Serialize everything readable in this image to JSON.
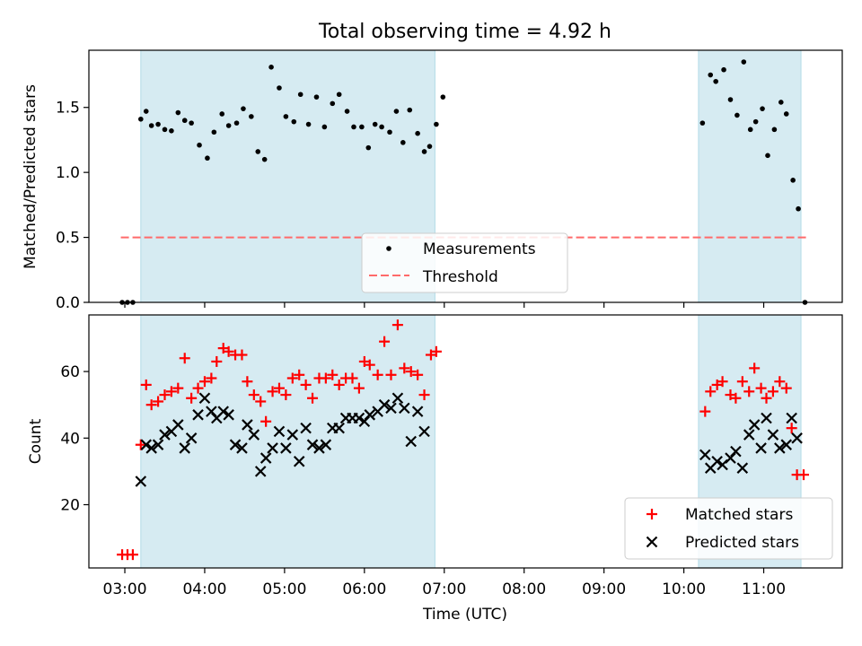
{
  "figure": {
    "title": "Total observing time = 4.92 h"
  },
  "colors": {
    "shade": "#add8e6",
    "threshold": "#ff6a6a",
    "measurements": "#000000",
    "matched": "#ff0000",
    "predicted": "#000000"
  },
  "chart_data": [
    {
      "type": "scatter",
      "title": "Total observing time = 4.92 h",
      "xlabel": "",
      "ylabel": "Matched/Predicted stars",
      "xlim": [
        "02:33",
        "11:59"
      ],
      "ylim": [
        0,
        1.94
      ],
      "x_ticks": [
        "03:00",
        "04:00",
        "05:00",
        "06:00",
        "07:00",
        "08:00",
        "09:00",
        "10:00",
        "11:00"
      ],
      "y_ticks": [
        "0.0",
        "0.5",
        "1.0",
        "1.5"
      ],
      "shaded_intervals": [
        [
          "03:12",
          "06:53"
        ],
        [
          "10:11",
          "11:28"
        ]
      ],
      "threshold": {
        "name": "Threshold",
        "y": 0.5,
        "x_range": [
          "02:57",
          "11:34"
        ]
      },
      "legend": {
        "placement": "lower-center",
        "entries": [
          "Measurements",
          "Threshold"
        ]
      },
      "series": [
        {
          "name": "Measurements",
          "marker": "dot",
          "points": [
            [
              "02:58",
              0.0
            ],
            [
              "03:02",
              0.0
            ],
            [
              "03:06",
              0.0
            ],
            [
              "03:12",
              1.41
            ],
            [
              "03:16",
              1.47
            ],
            [
              "03:20",
              1.36
            ],
            [
              "03:25",
              1.37
            ],
            [
              "03:30",
              1.33
            ],
            [
              "03:35",
              1.32
            ],
            [
              "03:40",
              1.46
            ],
            [
              "03:45",
              1.4
            ],
            [
              "03:50",
              1.38
            ],
            [
              "03:56",
              1.21
            ],
            [
              "04:02",
              1.11
            ],
            [
              "04:07",
              1.31
            ],
            [
              "04:13",
              1.45
            ],
            [
              "04:18",
              1.36
            ],
            [
              "04:24",
              1.38
            ],
            [
              "04:29",
              1.49
            ],
            [
              "04:35",
              1.43
            ],
            [
              "04:40",
              1.16
            ],
            [
              "04:45",
              1.1
            ],
            [
              "04:50",
              1.81
            ],
            [
              "04:56",
              1.65
            ],
            [
              "05:01",
              1.43
            ],
            [
              "05:07",
              1.39
            ],
            [
              "05:12",
              1.6
            ],
            [
              "05:18",
              1.37
            ],
            [
              "05:24",
              1.58
            ],
            [
              "05:30",
              1.35
            ],
            [
              "05:36",
              1.53
            ],
            [
              "05:41",
              1.6
            ],
            [
              "05:47",
              1.47
            ],
            [
              "05:52",
              1.35
            ],
            [
              "05:58",
              1.35
            ],
            [
              "06:03",
              1.19
            ],
            [
              "06:08",
              1.37
            ],
            [
              "06:13",
              1.35
            ],
            [
              "06:19",
              1.31
            ],
            [
              "06:24",
              1.47
            ],
            [
              "06:29",
              1.23
            ],
            [
              "06:34",
              1.48
            ],
            [
              "06:40",
              1.3
            ],
            [
              "06:45",
              1.16
            ],
            [
              "06:49",
              1.2
            ],
            [
              "06:54",
              1.37
            ],
            [
              "06:59",
              1.58
            ],
            [
              "10:14",
              1.38
            ],
            [
              "10:20",
              1.75
            ],
            [
              "10:24",
              1.7
            ],
            [
              "10:30",
              1.79
            ],
            [
              "10:35",
              1.56
            ],
            [
              "10:40",
              1.44
            ],
            [
              "10:45",
              1.85
            ],
            [
              "10:50",
              1.33
            ],
            [
              "10:54",
              1.39
            ],
            [
              "10:59",
              1.49
            ],
            [
              "11:03",
              1.13
            ],
            [
              "11:08",
              1.33
            ],
            [
              "11:13",
              1.54
            ],
            [
              "11:17",
              1.45
            ],
            [
              "11:22",
              0.94
            ],
            [
              "11:26",
              0.72
            ],
            [
              "11:31",
              0.0
            ]
          ]
        }
      ]
    },
    {
      "type": "scatter",
      "xlabel": "Time (UTC)",
      "ylabel": "Count",
      "xlim": [
        "02:33",
        "11:59"
      ],
      "ylim": [
        1,
        77
      ],
      "x_ticks": [
        "03:00",
        "04:00",
        "05:00",
        "06:00",
        "07:00",
        "08:00",
        "09:00",
        "10:00",
        "11:00"
      ],
      "y_ticks": [
        "20",
        "40",
        "60"
      ],
      "shaded_intervals": [
        [
          "03:12",
          "06:53"
        ],
        [
          "10:11",
          "11:28"
        ]
      ],
      "legend": {
        "placement": "lower-right",
        "entries": [
          "Matched stars",
          "Predicted stars"
        ]
      },
      "series": [
        {
          "name": "Matched stars",
          "marker": "plus",
          "points": [
            [
              "02:58",
              5
            ],
            [
              "03:02",
              5
            ],
            [
              "03:06",
              5
            ],
            [
              "03:12",
              38
            ],
            [
              "03:16",
              56
            ],
            [
              "03:20",
              50
            ],
            [
              "03:25",
              51
            ],
            [
              "03:30",
              53
            ],
            [
              "03:35",
              54
            ],
            [
              "03:40",
              55
            ],
            [
              "03:45",
              64
            ],
            [
              "03:50",
              52
            ],
            [
              "03:55",
              55
            ],
            [
              "04:00",
              57
            ],
            [
              "04:05",
              58
            ],
            [
              "04:09",
              63
            ],
            [
              "04:14",
              67
            ],
            [
              "04:18",
              66
            ],
            [
              "04:23",
              65
            ],
            [
              "04:28",
              65
            ],
            [
              "04:32",
              57
            ],
            [
              "04:37",
              53
            ],
            [
              "04:42",
              51
            ],
            [
              "04:46",
              45
            ],
            [
              "04:51",
              54
            ],
            [
              "04:56",
              55
            ],
            [
              "05:01",
              53
            ],
            [
              "05:06",
              58
            ],
            [
              "05:11",
              59
            ],
            [
              "05:16",
              56
            ],
            [
              "05:21",
              52
            ],
            [
              "05:26",
              58
            ],
            [
              "05:31",
              58
            ],
            [
              "05:36",
              59
            ],
            [
              "05:41",
              56
            ],
            [
              "05:46",
              58
            ],
            [
              "05:51",
              58
            ],
            [
              "05:56",
              55
            ],
            [
              "06:00",
              63
            ],
            [
              "06:04",
              62
            ],
            [
              "06:10",
              59
            ],
            [
              "06:15",
              69
            ],
            [
              "06:20",
              59
            ],
            [
              "06:25",
              74
            ],
            [
              "06:30",
              61
            ],
            [
              "06:35",
              60
            ],
            [
              "06:40",
              59
            ],
            [
              "06:45",
              53
            ],
            [
              "06:50",
              65
            ],
            [
              "06:54",
              66
            ],
            [
              "10:16",
              48
            ],
            [
              "10:20",
              54
            ],
            [
              "10:25",
              56
            ],
            [
              "10:29",
              57
            ],
            [
              "10:35",
              53
            ],
            [
              "10:39",
              52
            ],
            [
              "10:44",
              57
            ],
            [
              "10:49",
              54
            ],
            [
              "10:53",
              61
            ],
            [
              "10:58",
              55
            ],
            [
              "11:02",
              52
            ],
            [
              "11:07",
              54
            ],
            [
              "11:12",
              57
            ],
            [
              "11:17",
              55
            ],
            [
              "11:21",
              43
            ],
            [
              "11:25",
              29
            ],
            [
              "11:30",
              29
            ]
          ]
        },
        {
          "name": "Predicted stars",
          "marker": "x",
          "points": [
            [
              "03:12",
              27
            ],
            [
              "03:16",
              38
            ],
            [
              "03:20",
              37
            ],
            [
              "03:25",
              38
            ],
            [
              "03:30",
              41
            ],
            [
              "03:35",
              42
            ],
            [
              "03:40",
              44
            ],
            [
              "03:45",
              37
            ],
            [
              "03:50",
              40
            ],
            [
              "03:55",
              47
            ],
            [
              "04:00",
              52
            ],
            [
              "04:05",
              48
            ],
            [
              "04:09",
              46
            ],
            [
              "04:14",
              48
            ],
            [
              "04:18",
              47
            ],
            [
              "04:23",
              38
            ],
            [
              "04:28",
              37
            ],
            [
              "04:32",
              44
            ],
            [
              "04:37",
              41
            ],
            [
              "04:42",
              30
            ],
            [
              "04:46",
              34
            ],
            [
              "04:51",
              37
            ],
            [
              "04:56",
              42
            ],
            [
              "05:01",
              37
            ],
            [
              "05:06",
              41
            ],
            [
              "05:11",
              33
            ],
            [
              "05:16",
              43
            ],
            [
              "05:21",
              38
            ],
            [
              "05:26",
              37
            ],
            [
              "05:31",
              38
            ],
            [
              "05:36",
              43
            ],
            [
              "05:41",
              43
            ],
            [
              "05:46",
              46
            ],
            [
              "05:51",
              46
            ],
            [
              "05:56",
              46
            ],
            [
              "06:00",
              45
            ],
            [
              "06:04",
              47
            ],
            [
              "06:10",
              48
            ],
            [
              "06:15",
              50
            ],
            [
              "06:20",
              49
            ],
            [
              "06:25",
              52
            ],
            [
              "06:30",
              49
            ],
            [
              "06:35",
              39
            ],
            [
              "06:40",
              48
            ],
            [
              "06:45",
              42
            ],
            [
              "10:16",
              35
            ],
            [
              "10:20",
              31
            ],
            [
              "10:25",
              33
            ],
            [
              "10:29",
              32
            ],
            [
              "10:35",
              34
            ],
            [
              "10:39",
              36
            ],
            [
              "10:44",
              31
            ],
            [
              "10:49",
              41
            ],
            [
              "10:53",
              44
            ],
            [
              "10:58",
              37
            ],
            [
              "11:02",
              46
            ],
            [
              "11:07",
              41
            ],
            [
              "11:12",
              37
            ],
            [
              "11:17",
              38
            ],
            [
              "11:21",
              46
            ],
            [
              "11:25",
              40
            ]
          ]
        }
      ]
    }
  ]
}
